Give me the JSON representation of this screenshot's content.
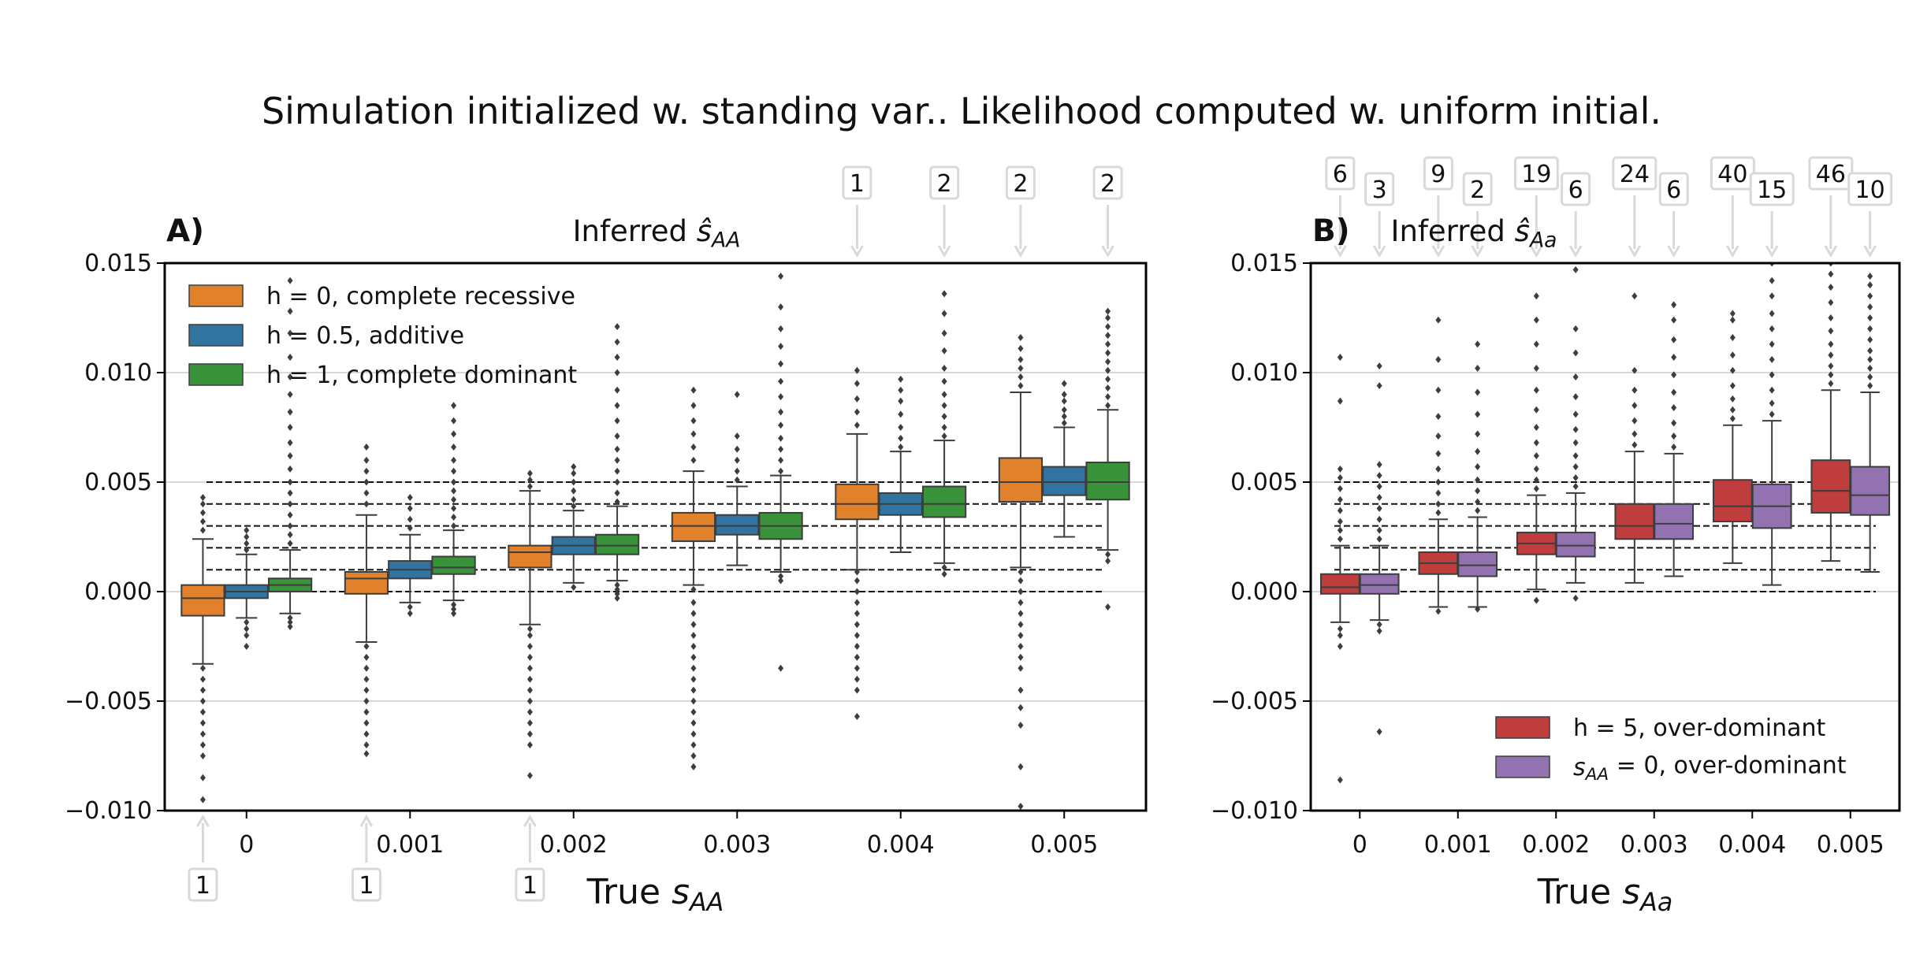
{
  "suptitle": "Simulation initialized w. standing var..  Likelihood computed w. uniform initial.",
  "chart_data": [
    {
      "type": "box",
      "panel_label": "A)",
      "title": "Inferred  ŝ_AA",
      "xlabel": "True s_AA",
      "ylabel": "",
      "ylim": [
        -0.01,
        0.015
      ],
      "yticks": [
        "0.015",
        "0.010",
        "0.005",
        "0.000",
        "−0.005",
        "−0.010"
      ],
      "categories": [
        "0",
        "0.001",
        "0.002",
        "0.003",
        "0.004",
        "0.005"
      ],
      "reference_lines": [
        0,
        0.001,
        0.002,
        0.003,
        0.004,
        0.005
      ],
      "grid": "horizontal",
      "legend_position": "top-left",
      "series": [
        {
          "name": "h = 0, complete recessive",
          "color": "#e1812c",
          "boxes": [
            {
              "whislo": -0.0033,
              "q1": -0.0011,
              "med": -0.0003,
              "q3": 0.0003,
              "whishi": 0.0024
            },
            {
              "whislo": -0.0023,
              "q1": -0.0001,
              "med": 0.0006,
              "q3": 0.0009,
              "whishi": 0.0035
            },
            {
              "whislo": -0.0015,
              "q1": 0.0011,
              "med": 0.0018,
              "q3": 0.0021,
              "whishi": 0.0046
            },
            {
              "whislo": 0.0003,
              "q1": 0.0023,
              "med": 0.003,
              "q3": 0.0036,
              "whishi": 0.0055
            },
            {
              "whislo": 0.001,
              "q1": 0.0033,
              "med": 0.004,
              "q3": 0.0049,
              "whishi": 0.0072
            },
            {
              "whislo": 0.0011,
              "q1": 0.0041,
              "med": 0.005,
              "q3": 0.0061,
              "whishi": 0.0091
            }
          ],
          "outliers": [
            [
              -0.0035,
              -0.004,
              -0.0045,
              -0.005,
              -0.0055,
              -0.006,
              -0.0065,
              -0.007,
              -0.0075,
              -0.0085,
              -0.0095,
              -0.0102,
              0.0028,
              0.0032,
              0.0036,
              0.004,
              0.0043
            ],
            [
              -0.0025,
              -0.003,
              -0.0035,
              -0.004,
              -0.0045,
              -0.005,
              -0.0055,
              -0.006,
              -0.0065,
              -0.007,
              -0.0074,
              0.004,
              0.0045,
              0.005,
              0.0055,
              0.006,
              0.0066
            ],
            [
              -0.0017,
              -0.002,
              -0.0025,
              -0.003,
              -0.0035,
              -0.004,
              -0.0045,
              -0.005,
              -0.0055,
              -0.006,
              -0.0065,
              -0.007,
              -0.0084,
              0.0048,
              0.0051,
              0.0054
            ],
            [
              0.0001,
              -0.0005,
              -0.001,
              -0.0015,
              -0.002,
              -0.0025,
              -0.003,
              -0.0035,
              -0.004,
              -0.0045,
              -0.005,
              -0.0055,
              -0.006,
              -0.0065,
              -0.007,
              -0.0075,
              -0.008,
              0.006,
              0.0066,
              0.0072,
              0.0078,
              0.0085,
              0.0092
            ],
            [
              0.0009,
              0.0005,
              0.0,
              -0.0005,
              -0.001,
              -0.0015,
              -0.002,
              -0.0025,
              -0.003,
              -0.0035,
              -0.004,
              -0.0045,
              -0.0057,
              0.0076,
              0.0082,
              0.0088,
              0.0095,
              0.0101
            ],
            [
              0.0009,
              0.0005,
              0.0,
              -0.0005,
              -0.001,
              -0.0015,
              -0.002,
              -0.0025,
              -0.003,
              -0.0035,
              -0.0045,
              -0.0053,
              -0.0061,
              -0.008,
              -0.0098,
              0.0094,
              0.0098,
              0.0102,
              0.0106,
              0.0111,
              0.0116
            ]
          ]
        },
        {
          "name": "h = 0.5, additive",
          "color": "#3274a1",
          "boxes": [
            {
              "whislo": -0.0012,
              "q1": -0.0003,
              "med": 0.0,
              "q3": 0.0003,
              "whishi": 0.0017
            },
            {
              "whislo": -0.0005,
              "q1": 0.0006,
              "med": 0.001,
              "q3": 0.0014,
              "whishi": 0.0026
            },
            {
              "whislo": 0.0004,
              "q1": 0.0017,
              "med": 0.0021,
              "q3": 0.0025,
              "whishi": 0.0037
            },
            {
              "whislo": 0.0012,
              "q1": 0.0026,
              "med": 0.003,
              "q3": 0.0035,
              "whishi": 0.0048
            },
            {
              "whislo": 0.0018,
              "q1": 0.0035,
              "med": 0.004,
              "q3": 0.0045,
              "whishi": 0.0064
            },
            {
              "whislo": 0.0025,
              "q1": 0.0044,
              "med": 0.005,
              "q3": 0.0057,
              "whishi": 0.0075
            }
          ],
          "outliers": [
            [
              -0.0014,
              -0.0017,
              -0.002,
              -0.0025,
              0.0019,
              0.0022,
              0.0025,
              0.0028
            ],
            [
              -0.0007,
              -0.001,
              0.0029,
              0.0033,
              0.0038,
              0.0043
            ],
            [
              0.0002,
              0.0039,
              0.0042,
              0.0046,
              0.005,
              0.0054,
              0.0057
            ],
            [
              0.0051,
              0.0055,
              0.006,
              0.0065,
              0.0071,
              0.009
            ],
            [
              0.0066,
              0.007,
              0.0075,
              0.0081,
              0.0087,
              0.0092,
              0.0097
            ],
            [
              0.0077,
              0.008,
              0.0083,
              0.0087,
              0.009,
              0.0095
            ]
          ]
        },
        {
          "name": "h = 1, complete dominant",
          "color": "#3a923a",
          "boxes": [
            {
              "whislo": -0.001,
              "q1": 0.0,
              "med": 0.0003,
              "q3": 0.0006,
              "whishi": 0.0019
            },
            {
              "whislo": -0.0004,
              "q1": 0.0008,
              "med": 0.0011,
              "q3": 0.0016,
              "whishi": 0.0028
            },
            {
              "whislo": 0.0005,
              "q1": 0.0017,
              "med": 0.0021,
              "q3": 0.0026,
              "whishi": 0.0039
            },
            {
              "whislo": 0.0009,
              "q1": 0.0024,
              "med": 0.003,
              "q3": 0.0036,
              "whishi": 0.0053
            },
            {
              "whislo": 0.0013,
              "q1": 0.0034,
              "med": 0.004,
              "q3": 0.0048,
              "whishi": 0.0069
            },
            {
              "whislo": 0.0019,
              "q1": 0.0042,
              "med": 0.005,
              "q3": 0.0059,
              "whishi": 0.0083
            }
          ],
          "outliers": [
            [
              -0.0012,
              -0.0014,
              -0.0016,
              0.0022,
              0.0026,
              0.003,
              0.0035,
              0.004,
              0.0045,
              0.005,
              0.0056,
              0.0062,
              0.0068,
              0.0075,
              0.0082,
              0.009,
              0.0098,
              0.0107,
              0.0118,
              0.0128,
              0.0142
            ],
            [
              -0.0006,
              -0.0008,
              -0.001,
              0.003,
              0.0034,
              0.0038,
              0.0042,
              0.0046,
              0.005,
              0.0055,
              0.006,
              0.0066,
              0.0072,
              0.0078,
              0.0085
            ],
            [
              0.0003,
              0.0001,
              -0.0001,
              -0.0003,
              0.0041,
              0.0045,
              0.005,
              0.0055,
              0.006,
              0.0065,
              0.0071,
              0.0078,
              0.0085,
              0.0092,
              0.01,
              0.0107,
              0.0114,
              0.0121
            ],
            [
              0.0007,
              0.0005,
              -0.0035,
              0.0055,
              0.006,
              0.0065,
              0.007,
              0.0076,
              0.0082,
              0.0089,
              0.0096,
              0.0104,
              0.0112,
              0.012,
              0.013,
              0.0144
            ],
            [
              0.0011,
              0.0008,
              0.0071,
              0.0075,
              0.008,
              0.0085,
              0.009,
              0.0096,
              0.0102,
              0.011,
              0.0118,
              0.0127,
              0.0136
            ],
            [
              0.0017,
              0.0014,
              -0.0007,
              0.0085,
              0.0089,
              0.0093,
              0.0097,
              0.0101,
              0.0105,
              0.0109,
              0.0113,
              0.0117,
              0.0121,
              0.0125,
              0.0128
            ]
          ]
        }
      ],
      "annotations": [
        {
          "label": "1",
          "category": 0,
          "series": 0,
          "side": "bottom"
        },
        {
          "label": "1",
          "category": 1,
          "series": 0,
          "side": "bottom"
        },
        {
          "label": "1",
          "category": 2,
          "series": 0,
          "side": "bottom"
        },
        {
          "label": "1",
          "category": 4,
          "series": 0,
          "side": "top"
        },
        {
          "label": "2",
          "category": 4,
          "series": 2,
          "side": "top"
        },
        {
          "label": "2",
          "category": 5,
          "series": 0,
          "side": "top"
        },
        {
          "label": "2",
          "category": 5,
          "series": 2,
          "side": "top"
        }
      ]
    },
    {
      "type": "box",
      "panel_label": "B)",
      "title": "Inferred  ŝ_Aa",
      "xlabel": "True s_Aa",
      "ylabel": "",
      "ylim": [
        -0.01,
        0.015
      ],
      "yticks": [
        "0.015",
        "0.010",
        "0.005",
        "0.000",
        "−0.005",
        "−0.010"
      ],
      "categories": [
        "0",
        "0.001",
        "0.002",
        "0.003",
        "0.004",
        "0.005"
      ],
      "reference_lines": [
        0,
        0.001,
        0.002,
        0.003,
        0.004,
        0.005
      ],
      "grid": "horizontal",
      "legend_position": "bottom-right",
      "series": [
        {
          "name": "h = 5, over-dominant",
          "color": "#c03d3e",
          "boxes": [
            {
              "whislo": -0.0014,
              "q1": -0.0001,
              "med": 0.0002,
              "q3": 0.0008,
              "whishi": 0.0021
            },
            {
              "whislo": -0.0007,
              "q1": 0.0008,
              "med": 0.0013,
              "q3": 0.0018,
              "whishi": 0.0033
            },
            {
              "whislo": 0.0001,
              "q1": 0.0017,
              "med": 0.0022,
              "q3": 0.0027,
              "whishi": 0.0044
            },
            {
              "whislo": 0.0004,
              "q1": 0.0024,
              "med": 0.003,
              "q3": 0.004,
              "whishi": 0.0064
            },
            {
              "whislo": 0.0013,
              "q1": 0.0032,
              "med": 0.0039,
              "q3": 0.0051,
              "whishi": 0.0076
            },
            {
              "whislo": 0.0014,
              "q1": 0.0036,
              "med": 0.0046,
              "q3": 0.006,
              "whishi": 0.0092
            }
          ],
          "outliers": [
            [
              -0.0017,
              -0.002,
              -0.0025,
              -0.0086,
              0.0024,
              0.0028,
              0.0032,
              0.0037,
              0.0042,
              0.0047,
              0.0052,
              0.0056,
              0.0087,
              0.0107
            ],
            [
              -0.0009,
              0.0036,
              0.004,
              0.0045,
              0.005,
              0.0056,
              0.0063,
              0.0071,
              0.008,
              0.0092,
              0.0106,
              0.0124
            ],
            [
              -0.0004,
              0.0047,
              0.0051,
              0.0056,
              0.0062,
              0.0068,
              0.0075,
              0.0083,
              0.0092,
              0.0102,
              0.0113,
              0.0124,
              0.0135
            ],
            [
              0.0067,
              0.0072,
              0.0078,
              0.0085,
              0.0092,
              0.0101,
              0.0135
            ],
            [
              0.0079,
              0.0083,
              0.0088,
              0.0094,
              0.0101,
              0.0108,
              0.0116,
              0.0124,
              0.0127
            ],
            [
              0.0095,
              0.0099,
              0.0103,
              0.0108,
              0.0113,
              0.0119,
              0.0125,
              0.0132,
              0.0139,
              0.0145,
              0.015
            ]
          ]
        },
        {
          "name": "s_AA = 0, over-dominant",
          "color": "#9372b2",
          "boxes": [
            {
              "whislo": -0.0013,
              "q1": -0.0001,
              "med": 0.0003,
              "q3": 0.0008,
              "whishi": 0.0021
            },
            {
              "whislo": -0.0007,
              "q1": 0.0007,
              "med": 0.0012,
              "q3": 0.0018,
              "whishi": 0.0034
            },
            {
              "whislo": 0.0004,
              "q1": 0.0016,
              "med": 0.0021,
              "q3": 0.0027,
              "whishi": 0.0045
            },
            {
              "whislo": 0.0007,
              "q1": 0.0024,
              "med": 0.0031,
              "q3": 0.004,
              "whishi": 0.0063
            },
            {
              "whislo": 0.0003,
              "q1": 0.0029,
              "med": 0.0039,
              "q3": 0.0049,
              "whishi": 0.0078
            },
            {
              "whislo": 0.0009,
              "q1": 0.0035,
              "med": 0.0044,
              "q3": 0.0057,
              "whishi": 0.0091
            }
          ],
          "outliers": [
            [
              -0.0015,
              -0.0018,
              -0.0064,
              0.0024,
              0.0028,
              0.0033,
              0.0038,
              0.0043,
              0.0048,
              0.0053,
              0.0058,
              0.0094,
              0.0103
            ],
            [
              -0.0008,
              0.0037,
              0.0041,
              0.0046,
              0.0051,
              0.0057,
              0.0064,
              0.0072,
              0.0081,
              0.0091,
              0.0102,
              0.0113
            ],
            [
              -0.0003,
              0.0048,
              0.0052,
              0.0057,
              0.0062,
              0.0068,
              0.0074,
              0.0081,
              0.0089,
              0.0098,
              0.0109,
              0.012,
              0.0147
            ],
            [
              0.0066,
              0.0071,
              0.0077,
              0.0084,
              0.0091,
              0.0099,
              0.0107,
              0.0115,
              0.0124,
              0.0131
            ],
            [
              0.0081,
              0.0086,
              0.0092,
              0.0099,
              0.0106,
              0.0113,
              0.012,
              0.0127,
              0.0135,
              0.0142,
              0.015
            ],
            [
              0.0094,
              0.0098,
              0.0102,
              0.0106,
              0.011,
              0.0115,
              0.012,
              0.0125,
              0.013,
              0.0135,
              0.014,
              0.0144
            ]
          ]
        }
      ],
      "annotations": [
        {
          "label": "6",
          "category": 0,
          "series": 0,
          "side": "top"
        },
        {
          "label": "3",
          "category": 0,
          "series": 1,
          "side": "top"
        },
        {
          "label": "9",
          "category": 1,
          "series": 0,
          "side": "top"
        },
        {
          "label": "2",
          "category": 1,
          "series": 1,
          "side": "top"
        },
        {
          "label": "19",
          "category": 2,
          "series": 0,
          "side": "top"
        },
        {
          "label": "6",
          "category": 2,
          "series": 1,
          "side": "top"
        },
        {
          "label": "24",
          "category": 3,
          "series": 0,
          "side": "top"
        },
        {
          "label": "6",
          "category": 3,
          "series": 1,
          "side": "top"
        },
        {
          "label": "40",
          "category": 4,
          "series": 0,
          "side": "top"
        },
        {
          "label": "15",
          "category": 4,
          "series": 1,
          "side": "top"
        },
        {
          "label": "46",
          "category": 5,
          "series": 0,
          "side": "top"
        },
        {
          "label": "10",
          "category": 5,
          "series": 1,
          "side": "top"
        }
      ]
    }
  ]
}
